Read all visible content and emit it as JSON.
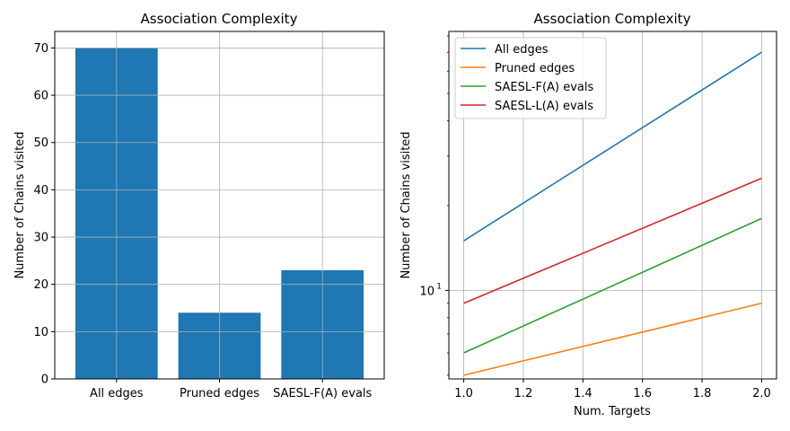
{
  "chart_data": [
    {
      "type": "bar",
      "title": "Association Complexity",
      "xlabel": "",
      "ylabel": "Number of Chains visited",
      "categories": [
        "All edges",
        "Pruned edges",
        "SAESL-F(A) evals"
      ],
      "values": [
        70,
        14,
        23
      ],
      "ylim": [
        0,
        73.5
      ],
      "yticks": [
        0,
        10,
        20,
        30,
        40,
        50,
        60,
        70
      ],
      "grid": true,
      "color": "#1f77b4"
    },
    {
      "type": "line",
      "title": "Association Complexity",
      "xlabel": "Num. Targets",
      "ylabel": "Number of Chains visited",
      "yscale": "log",
      "x": [
        1.0,
        2.0
      ],
      "xlim": [
        0.95,
        2.05
      ],
      "xticks": [
        "1.0",
        "1.2",
        "1.4",
        "1.6",
        "1.8",
        "2.0"
      ],
      "ytick_label": "10",
      "ytick_exponent": "1",
      "ylim": [
        4.85,
        83
      ],
      "grid": true,
      "legend": "upper-left",
      "series": [
        {
          "name": "All edges",
          "values": [
            15,
            70
          ],
          "color": "#1f77b4"
        },
        {
          "name": "Pruned edges",
          "values": [
            5,
            9
          ],
          "color": "#ff7f0e"
        },
        {
          "name": "SAESL-F(A) evals",
          "values": [
            6,
            18
          ],
          "color": "#2ca02c"
        },
        {
          "name": "SAESL-L(A) evals",
          "values": [
            9,
            25
          ],
          "color": "#d62728"
        }
      ]
    }
  ]
}
